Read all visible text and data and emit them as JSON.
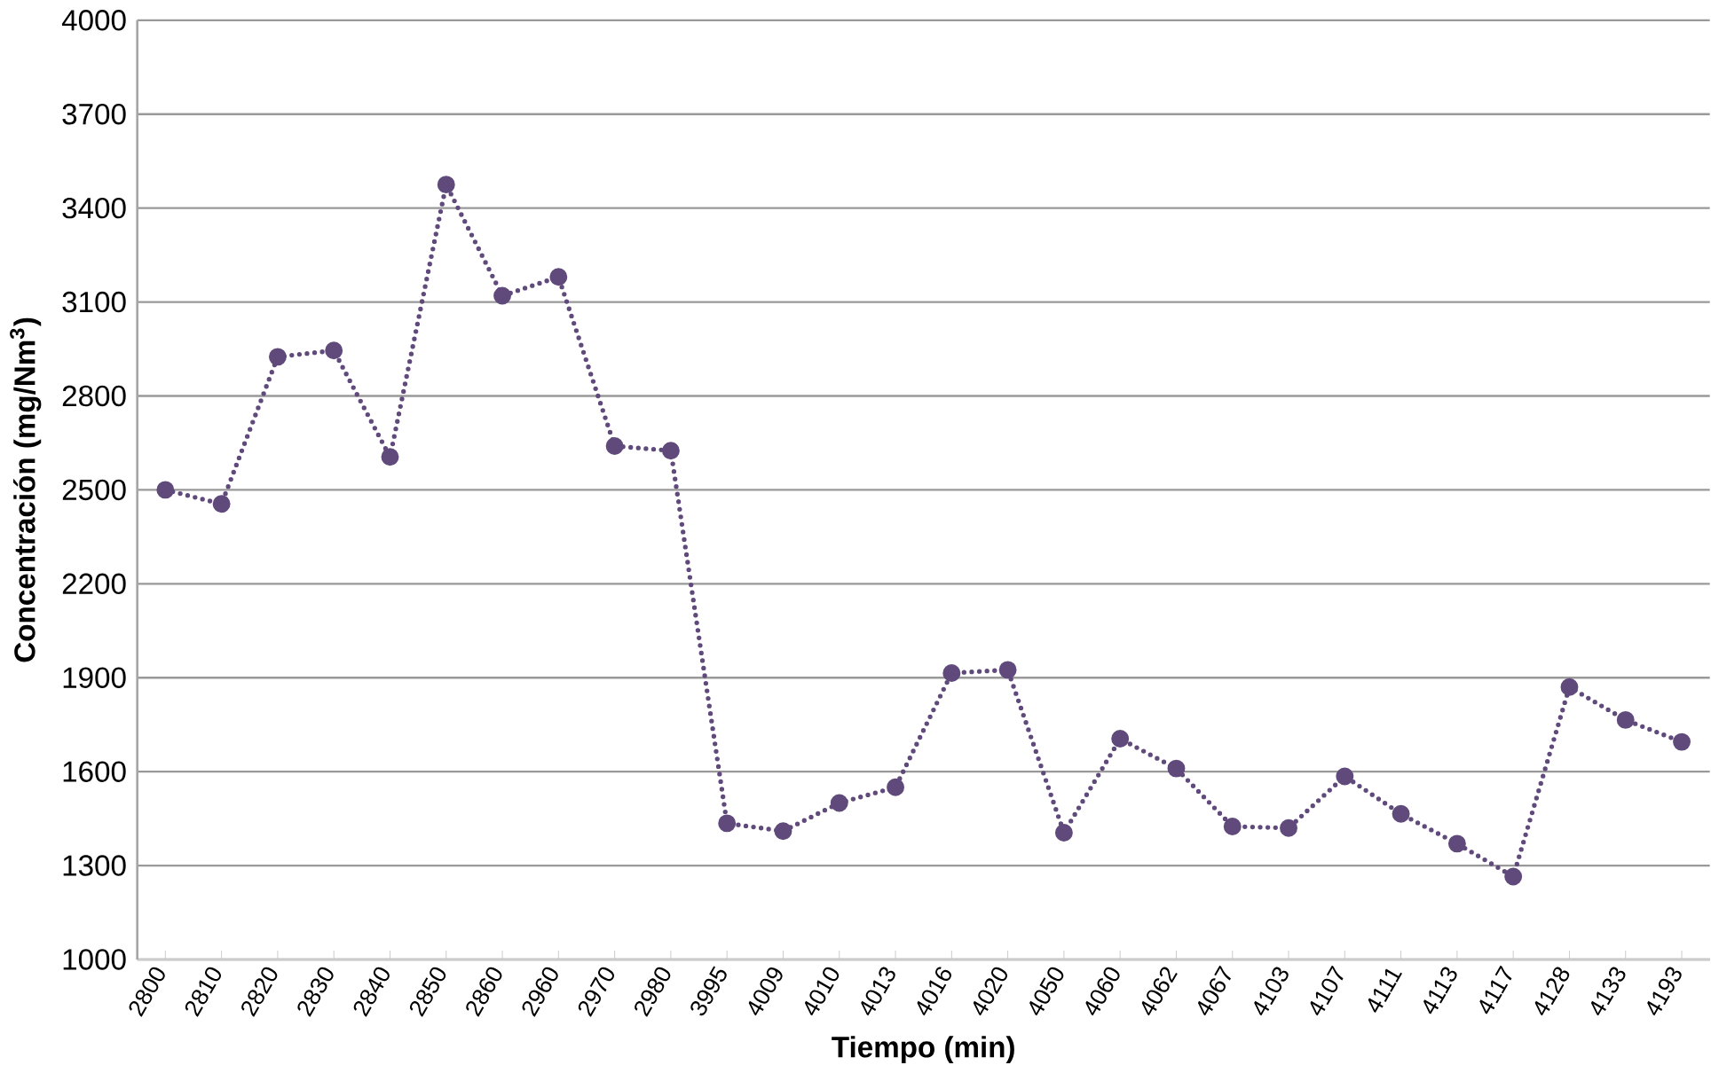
{
  "chart_data": {
    "type": "line",
    "xlabel": "Tiempo (min)",
    "ylabel": "Concentración (mg/Nm$^{3}$)",
    "categories": [
      "2800",
      "2810",
      "2820",
      "2830",
      "2840",
      "2850",
      "2860",
      "2960",
      "2970",
      "2980",
      "3995",
      "4009",
      "4010",
      "4013",
      "4016",
      "4020",
      "4050",
      "4060",
      "4062",
      "4067",
      "4103",
      "4107",
      "4111",
      "4113",
      "4117",
      "4128",
      "4133",
      "4193"
    ],
    "series": [
      {
        "color": "#604a7b",
        "values": [
          2500,
          2455,
          2925,
          2945,
          2605,
          3475,
          3120,
          3180,
          2640,
          2625,
          1435,
          1410,
          1500,
          1550,
          1915,
          1925,
          1405,
          1705,
          1610,
          1425,
          1420,
          1585,
          1465,
          1370,
          1265,
          1870,
          1765,
          1695
        ]
      }
    ],
    "ylim": [
      1000,
      4000
    ],
    "yticks": [
      1000,
      1300,
      1600,
      1900,
      2200,
      2500,
      2800,
      3100,
      3400,
      3700,
      4000
    ],
    "grid": "y",
    "marker": "circle",
    "line_style": "dotted"
  }
}
